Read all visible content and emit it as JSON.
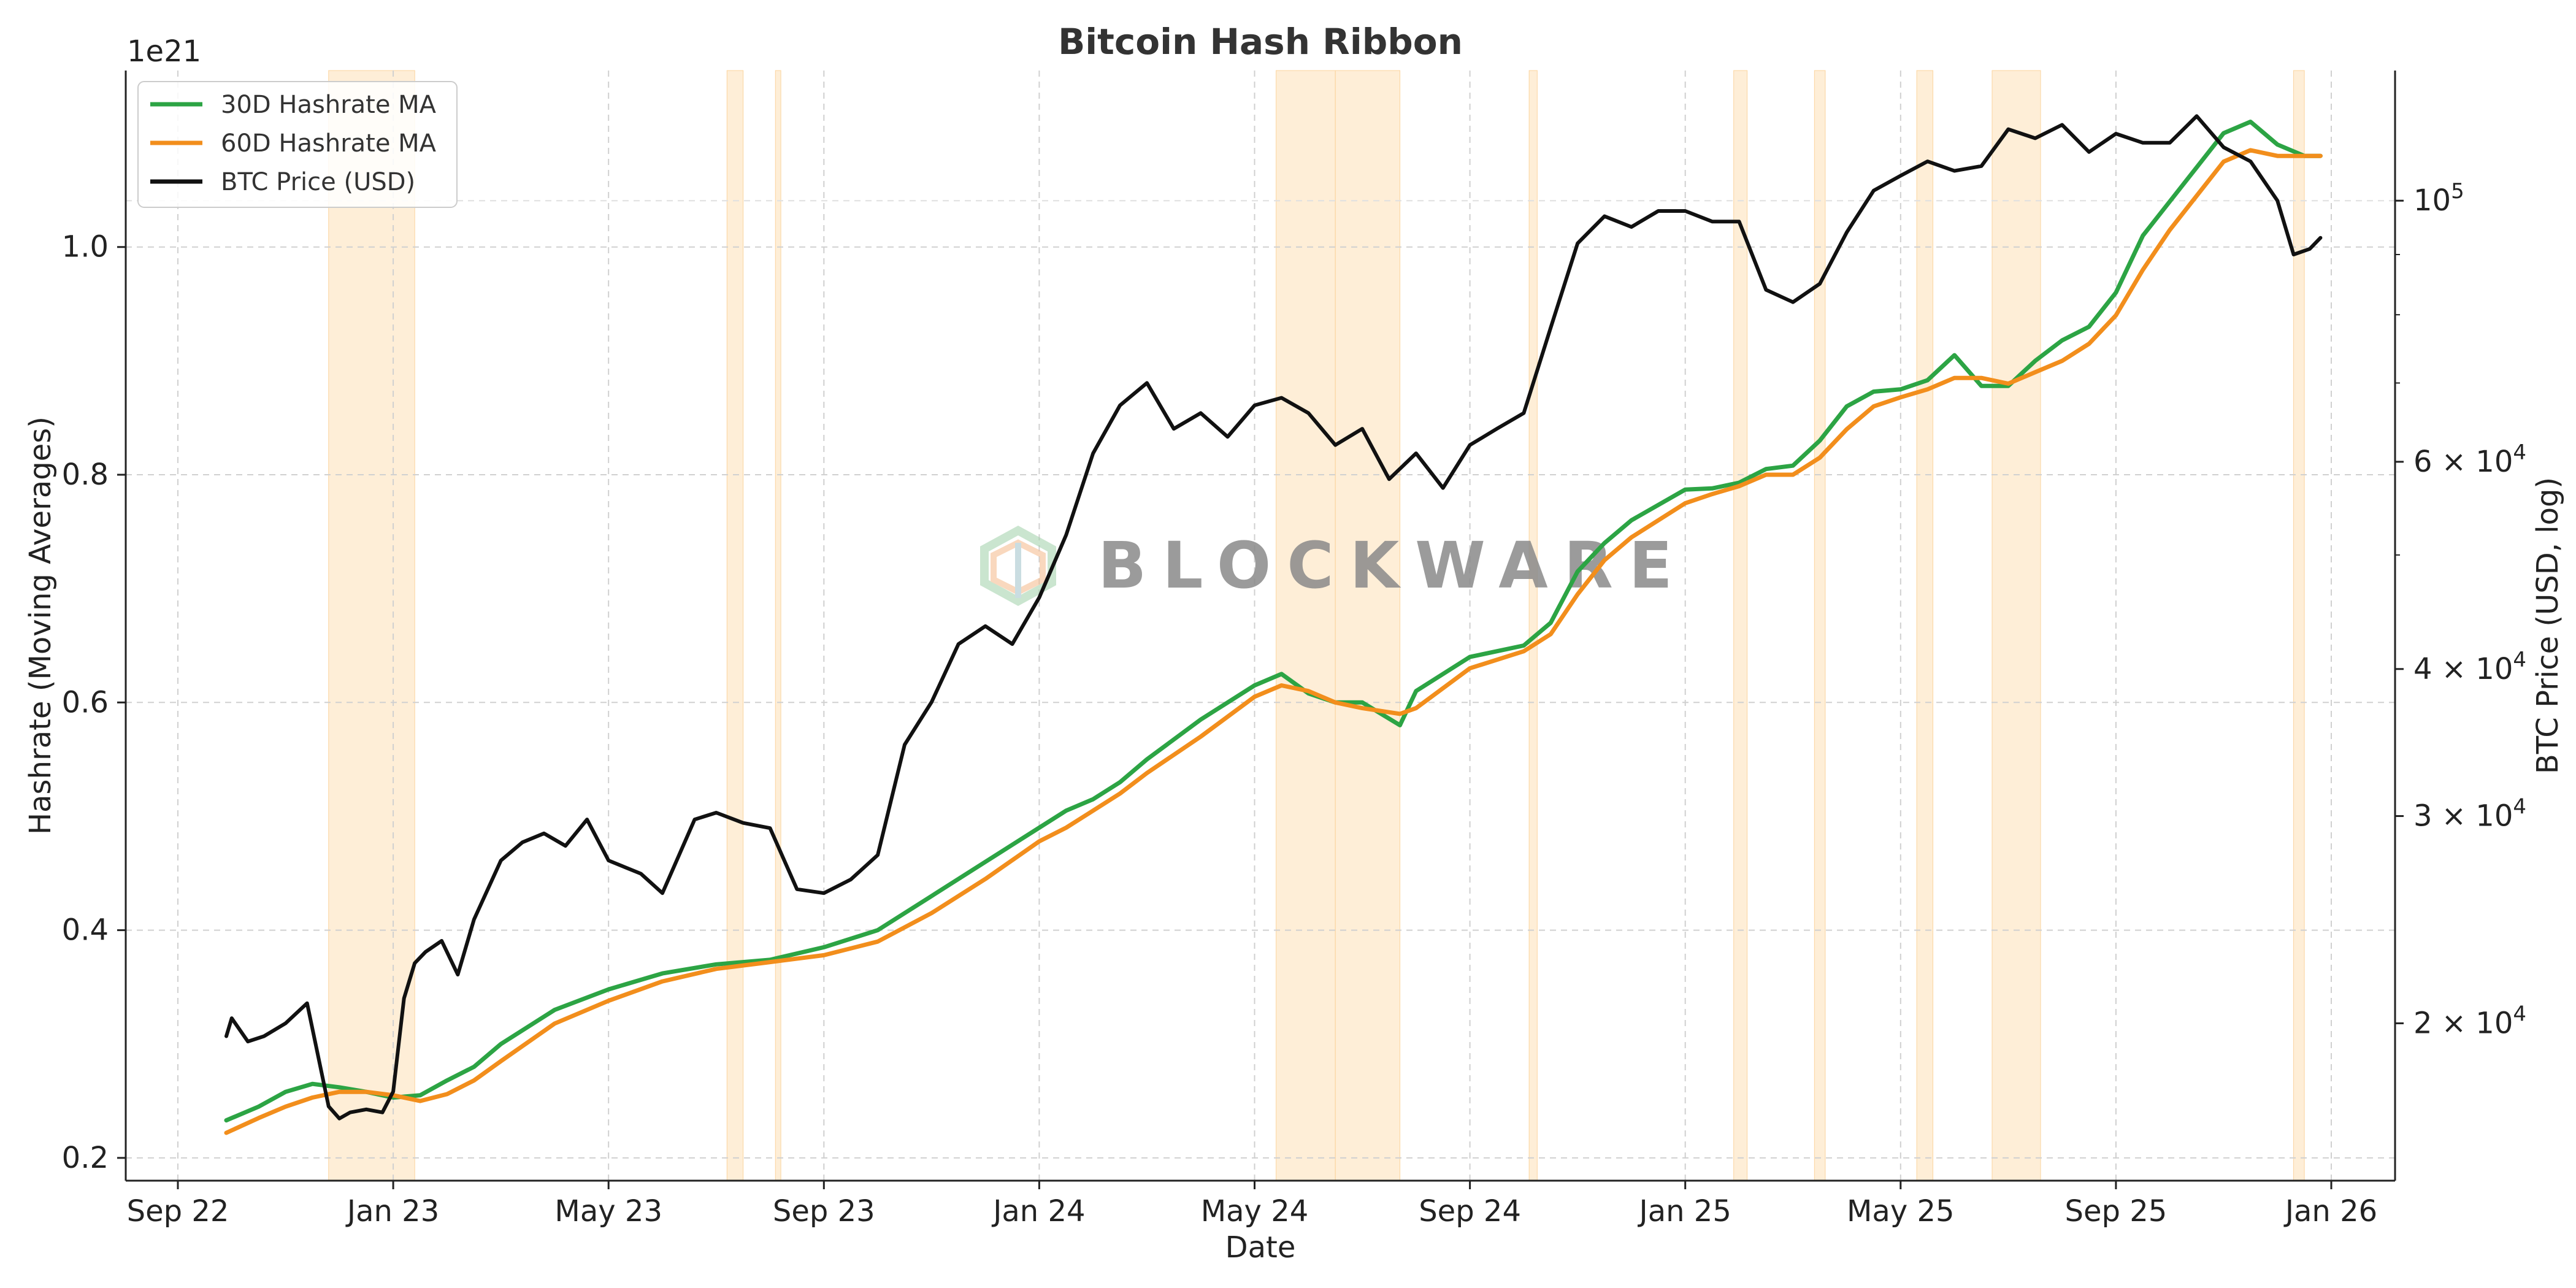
{
  "chart_data": {
    "type": "line",
    "title": "Bitcoin Hash Ribbon",
    "xlabel": "Date",
    "ylabel_left": "Hashrate (Moving Averages)",
    "ylabel_right": "BTC Price (USD, log)",
    "offset_text": "1e21",
    "watermark": "BLOCKWARE",
    "x_ticks": [
      "Sep 22",
      "Jan 23",
      "May 23",
      "Sep 23",
      "Jan 24",
      "May 24",
      "Sep 24",
      "Jan 25",
      "May 25",
      "Sep 25",
      "Jan 26"
    ],
    "x_tick_months": [
      0,
      4,
      8,
      12,
      16,
      20,
      24,
      28,
      32,
      36,
      40
    ],
    "xlim_months": [
      0,
      40.9
    ],
    "y_left": {
      "ticks": [
        "0.2",
        "0.4",
        "0.6",
        "0.8",
        "1.0"
      ],
      "tick_values": [
        0.2,
        0.4,
        0.6,
        0.8,
        1.0
      ],
      "ylim": [
        0.18,
        1.155
      ]
    },
    "y_right": {
      "scale": "log",
      "ylim": [
        14700,
        129000
      ],
      "major_ticks": [
        {
          "value": 20000,
          "base": "2 × 10",
          "exp": "4"
        },
        {
          "value": 30000,
          "base": "3 × 10",
          "exp": "4"
        },
        {
          "value": 40000,
          "base": "4 × 10",
          "exp": "4"
        },
        {
          "value": 60000,
          "base": "6 × 10",
          "exp": "4"
        },
        {
          "value": 100000,
          "base": "10",
          "exp": "5"
        }
      ],
      "minor_ticks": [
        50000,
        70000,
        80000,
        90000
      ]
    },
    "grid": true,
    "legend_position": "top-left",
    "capitulation_bands_months": [
      [
        2.8,
        4.4
      ],
      [
        10.2,
        10.5
      ],
      [
        11.1,
        11.2
      ],
      [
        20.4,
        21.5
      ],
      [
        21.5,
        22.7
      ],
      [
        25.1,
        25.25
      ],
      [
        28.9,
        29.15
      ],
      [
        30.4,
        30.6
      ],
      [
        32.3,
        32.6
      ],
      [
        33.7,
        34.6
      ],
      [
        39.3,
        39.5
      ]
    ],
    "series": [
      {
        "name": "30D Hashrate MA",
        "color": "#2ca444",
        "axis": "left",
        "x_months": [
          0.9,
          1.5,
          2.0,
          2.5,
          3.0,
          3.5,
          4.0,
          4.5,
          5.0,
          5.5,
          6.0,
          7.0,
          8.0,
          9.0,
          10.0,
          11.0,
          12.0,
          13.0,
          14.0,
          15.0,
          16.0,
          16.5,
          17.0,
          17.5,
          18.0,
          19.0,
          20.0,
          20.5,
          21.0,
          21.5,
          22.0,
          22.7,
          23.0,
          24.0,
          25.0,
          25.5,
          26.0,
          26.5,
          27.0,
          28.0,
          28.5,
          29.0,
          29.5,
          30.0,
          30.5,
          31.0,
          31.5,
          32.0,
          32.5,
          33.0,
          33.5,
          34.0,
          34.5,
          35.0,
          35.5,
          36.0,
          36.5,
          37.0,
          37.5,
          38.0,
          38.5,
          39.0,
          39.5,
          39.8
        ],
        "values": [
          0.233,
          0.245,
          0.258,
          0.265,
          0.262,
          0.258,
          0.253,
          0.255,
          0.268,
          0.28,
          0.3,
          0.33,
          0.348,
          0.362,
          0.37,
          0.374,
          0.385,
          0.4,
          0.43,
          0.46,
          0.49,
          0.505,
          0.515,
          0.53,
          0.55,
          0.585,
          0.615,
          0.625,
          0.608,
          0.6,
          0.6,
          0.58,
          0.61,
          0.64,
          0.65,
          0.67,
          0.715,
          0.74,
          0.76,
          0.787,
          0.788,
          0.793,
          0.805,
          0.808,
          0.83,
          0.86,
          0.873,
          0.875,
          0.883,
          0.905,
          0.878,
          0.878,
          0.9,
          0.918,
          0.93,
          0.96,
          1.01,
          1.04,
          1.07,
          1.1,
          1.11,
          1.09,
          1.08,
          1.08
        ]
      },
      {
        "name": "60D Hashrate MA",
        "color": "#f28e1c",
        "axis": "left",
        "x_months": [
          0.9,
          1.5,
          2.0,
          2.5,
          3.0,
          3.5,
          4.0,
          4.5,
          5.0,
          5.5,
          6.0,
          7.0,
          8.0,
          9.0,
          10.0,
          11.0,
          12.0,
          13.0,
          14.0,
          15.0,
          16.0,
          16.5,
          17.0,
          17.5,
          18.0,
          19.0,
          20.0,
          20.5,
          21.0,
          21.5,
          22.0,
          22.7,
          23.0,
          24.0,
          25.0,
          25.5,
          26.0,
          26.5,
          27.0,
          28.0,
          28.5,
          29.0,
          29.5,
          30.0,
          30.5,
          31.0,
          31.5,
          32.0,
          32.5,
          33.0,
          33.5,
          34.0,
          34.5,
          35.0,
          35.5,
          36.0,
          36.5,
          37.0,
          37.5,
          38.0,
          38.5,
          39.0,
          39.5,
          39.8
        ],
        "values": [
          0.222,
          0.235,
          0.245,
          0.253,
          0.258,
          0.258,
          0.255,
          0.25,
          0.256,
          0.268,
          0.285,
          0.318,
          0.338,
          0.355,
          0.366,
          0.372,
          0.378,
          0.39,
          0.415,
          0.445,
          0.478,
          0.49,
          0.505,
          0.52,
          0.538,
          0.57,
          0.605,
          0.615,
          0.61,
          0.6,
          0.595,
          0.59,
          0.595,
          0.63,
          0.645,
          0.66,
          0.695,
          0.725,
          0.745,
          0.775,
          0.783,
          0.79,
          0.8,
          0.8,
          0.815,
          0.84,
          0.86,
          0.868,
          0.875,
          0.885,
          0.885,
          0.88,
          0.89,
          0.9,
          0.915,
          0.94,
          0.98,
          1.015,
          1.045,
          1.075,
          1.085,
          1.08,
          1.08,
          1.08
        ]
      },
      {
        "name": "BTC Price (USD)",
        "color": "#111111",
        "axis": "right",
        "x_months": [
          0.9,
          1.0,
          1.3,
          1.6,
          2.0,
          2.4,
          2.8,
          3.0,
          3.2,
          3.5,
          3.8,
          4.0,
          4.2,
          4.4,
          4.6,
          4.9,
          5.2,
          5.5,
          6.0,
          6.4,
          6.8,
          7.2,
          7.6,
          8.0,
          8.6,
          9.0,
          9.6,
          10.0,
          10.5,
          11.0,
          11.5,
          12.0,
          12.5,
          13.0,
          13.5,
          14.0,
          14.5,
          15.0,
          15.5,
          16.0,
          16.5,
          17.0,
          17.5,
          18.0,
          18.5,
          19.0,
          19.5,
          20.0,
          20.5,
          21.0,
          21.5,
          22.0,
          22.5,
          23.0,
          23.5,
          24.0,
          24.5,
          25.0,
          25.5,
          26.0,
          26.5,
          27.0,
          27.5,
          28.0,
          28.5,
          29.0,
          29.5,
          30.0,
          30.5,
          31.0,
          31.5,
          32.0,
          32.5,
          33.0,
          33.5,
          34.0,
          34.5,
          35.0,
          35.5,
          36.0,
          36.5,
          37.0,
          37.5,
          38.0,
          38.5,
          39.0,
          39.3,
          39.6,
          39.8
        ],
        "values": [
          19500,
          20200,
          19300,
          19500,
          20000,
          20800,
          17000,
          16600,
          16800,
          16900,
          16800,
          17500,
          21000,
          22500,
          23000,
          23500,
          22000,
          24500,
          27500,
          28500,
          29000,
          28300,
          29800,
          27500,
          26800,
          25800,
          29800,
          30200,
          29600,
          29300,
          26000,
          25800,
          26500,
          27800,
          34500,
          37500,
          42000,
          43500,
          42000,
          46000,
          52000,
          61000,
          67000,
          70000,
          64000,
          66000,
          63000,
          67000,
          68000,
          66000,
          62000,
          64000,
          58000,
          61000,
          57000,
          62000,
          64000,
          66000,
          78000,
          92000,
          97000,
          95000,
          98000,
          98000,
          96000,
          96000,
          84000,
          82000,
          85000,
          94000,
          102000,
          105000,
          108000,
          106000,
          107000,
          115000,
          113000,
          116000,
          110000,
          114000,
          112000,
          112000,
          118000,
          111000,
          108000,
          100000,
          90000,
          91000,
          93000
        ]
      }
    ]
  }
}
